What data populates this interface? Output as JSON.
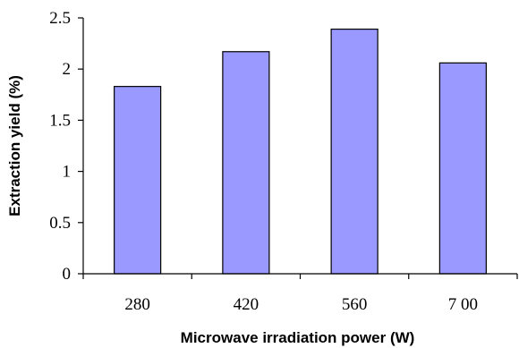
{
  "chart_data": {
    "type": "bar",
    "categories": [
      "280",
      "420",
      "560",
      "7 00"
    ],
    "values": [
      1.83,
      2.17,
      2.39,
      2.06
    ],
    "xlabel": "Microwave irradiation power (W)",
    "ylabel": "Extraction yield (%)",
    "ylim": [
      0,
      2.5
    ],
    "yticks": [
      "0",
      "0.5",
      "1",
      "1.5",
      "2",
      "2.5"
    ],
    "grid": false,
    "legend": "none",
    "colors": {
      "bar_fill": "#9999ff",
      "bar_stroke": "#000000"
    }
  }
}
